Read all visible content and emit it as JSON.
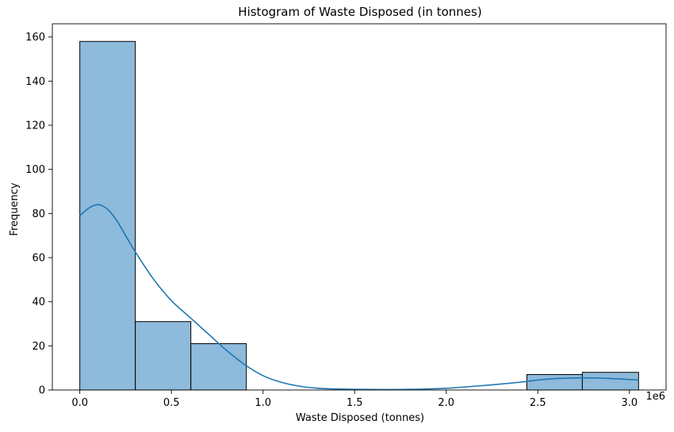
{
  "chart_data": {
    "type": "bar",
    "subtype": "histogram",
    "title": "Histogram of Waste Disposed (in tonnes)",
    "xlabel": "Waste Disposed (tonnes)",
    "ylabel": "Frequency",
    "x_scale_note": "1e6",
    "xlim": [
      -150000,
      3200000
    ],
    "ylim": [
      0,
      166
    ],
    "x_ticks": [
      0,
      500000,
      1000000,
      1500000,
      2000000,
      2500000,
      3000000
    ],
    "x_tick_labels": [
      "0.0",
      "0.5",
      "1.0",
      "1.5",
      "2.0",
      "2.5",
      "3.0"
    ],
    "y_ticks": [
      0,
      20,
      40,
      60,
      80,
      100,
      120,
      140,
      160
    ],
    "y_tick_labels": [
      "0",
      "20",
      "40",
      "60",
      "80",
      "100",
      "120",
      "140",
      "160"
    ],
    "bins": [
      {
        "x0": 0,
        "x1": 303000,
        "count": 158
      },
      {
        "x0": 303000,
        "x1": 606000,
        "count": 31
      },
      {
        "x0": 606000,
        "x1": 909000,
        "count": 21
      },
      {
        "x0": 2440000,
        "x1": 2743000,
        "count": 7
      },
      {
        "x0": 2743000,
        "x1": 3050000,
        "count": 8
      }
    ],
    "kde": {
      "x": [
        0,
        50000,
        100000,
        150000,
        200000,
        250000,
        300000,
        400000,
        500000,
        600000,
        700000,
        800000,
        900000,
        1000000,
        1100000,
        1200000,
        1300000,
        1500000,
        1800000,
        2000000,
        2200000,
        2400000,
        2500000,
        2600000,
        2750000,
        2900000,
        3050000
      ],
      "y": [
        79,
        82.5,
        84,
        82,
        77,
        70,
        63,
        50.5,
        40.5,
        33,
        25.5,
        18,
        11.5,
        6.5,
        3.5,
        1.7,
        0.8,
        0.3,
        0.3,
        0.8,
        2,
        3.5,
        4.5,
        5.2,
        5.5,
        5.2,
        4.5
      ]
    },
    "bar_color": "#8ebadb",
    "bar_edge_color": "#000000",
    "kde_color": "#1f77b4",
    "grid": false,
    "legend": false
  }
}
